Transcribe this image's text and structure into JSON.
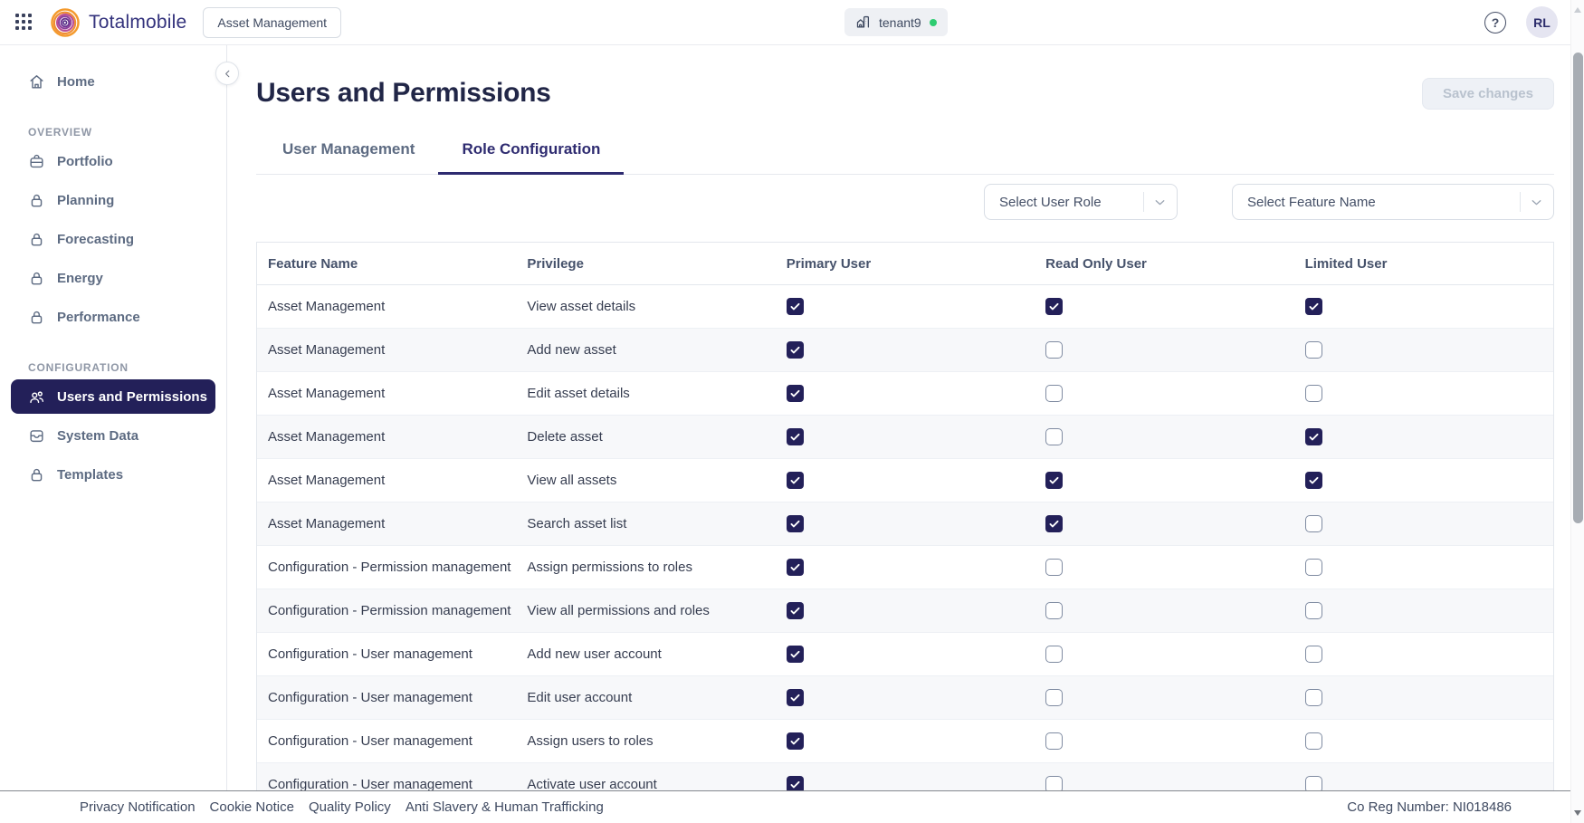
{
  "topbar": {
    "brand": "Totalmobile",
    "product_badge": "Asset Management",
    "tenant": {
      "name": "tenant9",
      "status_color": "#2ecc71"
    },
    "help_glyph": "?",
    "avatar_initials": "RL"
  },
  "sidebar": {
    "home": {
      "label": "Home",
      "icon": "home-icon"
    },
    "sections": [
      {
        "label": "OVERVIEW",
        "items": [
          {
            "label": "Portfolio",
            "icon": "briefcase-icon",
            "active": false
          },
          {
            "label": "Planning",
            "icon": "lock-icon",
            "active": false
          },
          {
            "label": "Forecasting",
            "icon": "lock-icon",
            "active": false
          },
          {
            "label": "Energy",
            "icon": "lock-icon",
            "active": false
          },
          {
            "label": "Performance",
            "icon": "lock-icon",
            "active": false
          }
        ]
      },
      {
        "label": "CONFIGURATION",
        "items": [
          {
            "label": "Users and Permissions",
            "icon": "users-icon",
            "active": true
          },
          {
            "label": "System Data",
            "icon": "archive-icon",
            "active": false
          },
          {
            "label": "Templates",
            "icon": "lock-icon",
            "active": false
          }
        ]
      }
    ]
  },
  "page": {
    "title": "Users and Permissions",
    "save_button": "Save changes",
    "tabs": [
      {
        "label": "User Management",
        "active": false
      },
      {
        "label": "Role Configuration",
        "active": true
      }
    ],
    "filters": [
      {
        "placeholder": "Select User Role"
      },
      {
        "placeholder": "Select Feature Name"
      }
    ]
  },
  "table": {
    "columns": [
      "Feature Name",
      "Privilege",
      "Primary User",
      "Read Only User",
      "Limited User"
    ],
    "rows": [
      {
        "feature": "Asset Management",
        "privilege": "View asset details",
        "primary": true,
        "read_only": true,
        "limited": true
      },
      {
        "feature": "Asset Management",
        "privilege": "Add new asset",
        "primary": true,
        "read_only": false,
        "limited": false
      },
      {
        "feature": "Asset Management",
        "privilege": "Edit asset details",
        "primary": true,
        "read_only": false,
        "limited": false
      },
      {
        "feature": "Asset Management",
        "privilege": "Delete asset",
        "primary": true,
        "read_only": false,
        "limited": true
      },
      {
        "feature": "Asset Management",
        "privilege": "View all assets",
        "primary": true,
        "read_only": true,
        "limited": true
      },
      {
        "feature": "Asset Management",
        "privilege": "Search asset list",
        "primary": true,
        "read_only": true,
        "limited": false
      },
      {
        "feature": "Configuration - Permission management",
        "privilege": "Assign permissions to roles",
        "primary": true,
        "read_only": false,
        "limited": false
      },
      {
        "feature": "Configuration - Permission management",
        "privilege": "View all permissions and roles",
        "primary": true,
        "read_only": false,
        "limited": false
      },
      {
        "feature": "Configuration - User management",
        "privilege": "Add new user account",
        "primary": true,
        "read_only": false,
        "limited": false
      },
      {
        "feature": "Configuration - User management",
        "privilege": "Edit user account",
        "primary": true,
        "read_only": false,
        "limited": false
      },
      {
        "feature": "Configuration - User management",
        "privilege": "Assign users to roles",
        "primary": true,
        "read_only": false,
        "limited": false
      },
      {
        "feature": "Configuration - User management",
        "privilege": "Activate user account",
        "primary": true,
        "read_only": false,
        "limited": false
      }
    ]
  },
  "footer": {
    "links": [
      "Privacy Notification",
      "Cookie Notice",
      "Quality Policy",
      "Anti Slavery & Human Trafficking"
    ],
    "co_reg": "Co Reg Number: NI018486"
  },
  "icons": {
    "apps_menu": "grid-icon",
    "tenant": "building-icon",
    "help": "question-circle-icon",
    "sidebar_collapse": "chevron-left-icon",
    "select_dropdown": "chevron-down-icon",
    "checkbox_checked": "check-icon"
  },
  "colors": {
    "primary_navy": "#232059",
    "active_tab": "#2e2b70",
    "brand_navy": "#33327c",
    "status_green": "#2ecc71",
    "row_stripe": "#f7f8fa",
    "disabled_button_text": "#b9c2ce"
  }
}
